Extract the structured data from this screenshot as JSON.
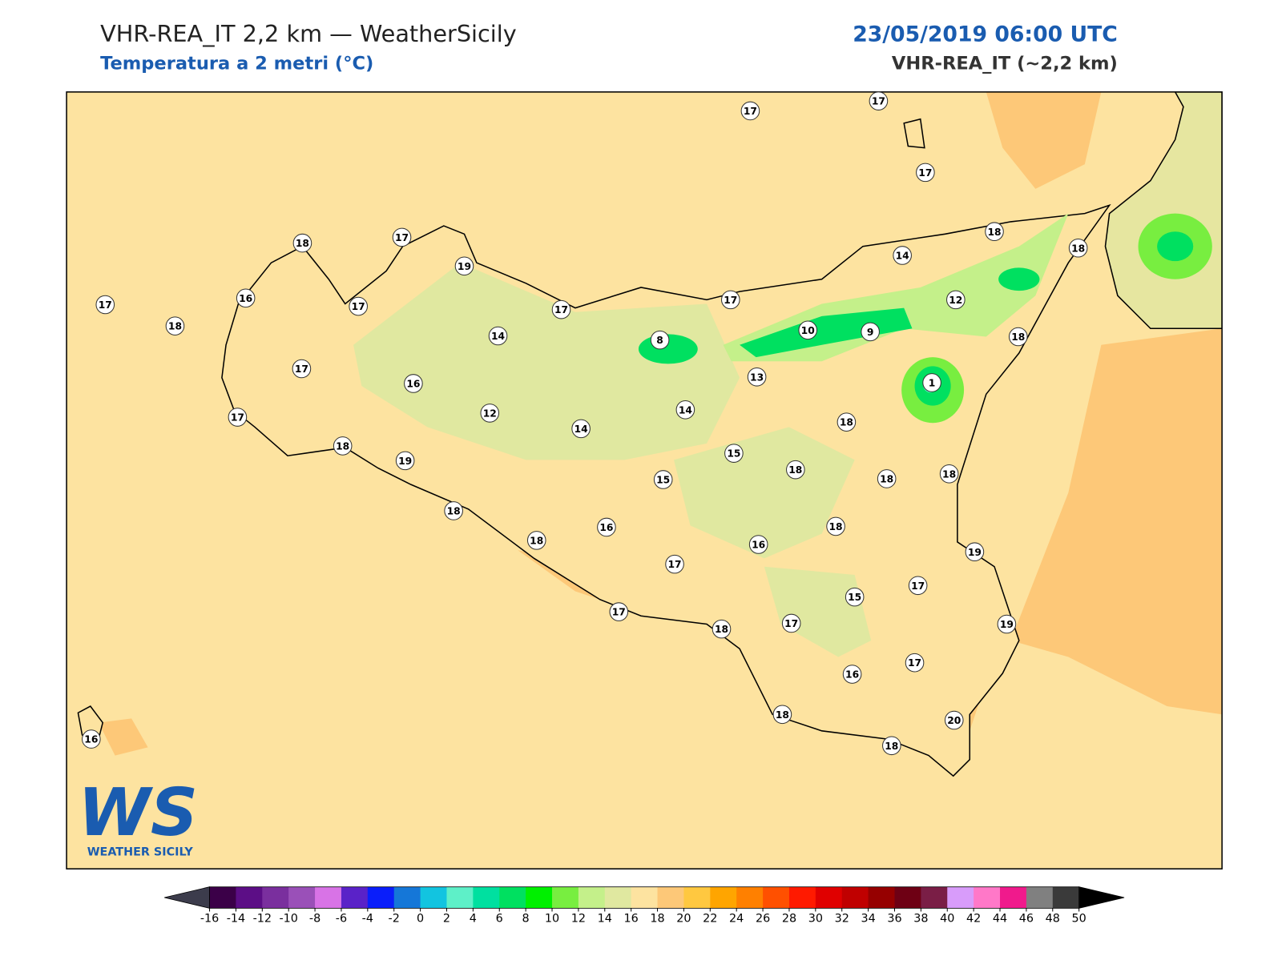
{
  "header": {
    "title": "VHR-REA_IT 2,2 km — WeatherSicily",
    "subtitle": "Temperatura a 2 metri (°C)",
    "datetime": "23/05/2019 06:00 UTC",
    "model": "VHR-REA_IT (~2,2 km)"
  },
  "map": {
    "stations": [
      17,
      17,
      17,
      18,
      18,
      18,
      17,
      19,
      17,
      16,
      17,
      18,
      17,
      17,
      14,
      12,
      14,
      8,
      10,
      9,
      18,
      17,
      16,
      13,
      1,
      17,
      12,
      14,
      14,
      18,
      18,
      19,
      15,
      15,
      18,
      18,
      18,
      18,
      16,
      18,
      18,
      16,
      19,
      17,
      17,
      15,
      17,
      18,
      17,
      19,
      17,
      16,
      18,
      20,
      18,
      16
    ]
  },
  "colorbar": {
    "ticks": [
      -16,
      -14,
      -12,
      -10,
      -8,
      -6,
      -4,
      -2,
      0,
      2,
      4,
      6,
      8,
      10,
      12,
      14,
      16,
      18,
      20,
      22,
      24,
      26,
      28,
      30,
      32,
      34,
      36,
      38,
      40,
      42,
      44,
      46,
      48,
      50
    ],
    "colors": [
      "#3b0048",
      "#5c0e86",
      "#7a2f9e",
      "#9a50b8",
      "#d873e6",
      "#5a22c8",
      "#0a1efa",
      "#1577d8",
      "#12c4e0",
      "#5ef0c8",
      "#00e0a0",
      "#00e060",
      "#00f000",
      "#78ee40",
      "#c4f08a",
      "#e0e8a0",
      "#fde3a0",
      "#fdc878",
      "#ffc840",
      "#ffa500",
      "#ff8000",
      "#ff5000",
      "#ff1a00",
      "#e00000",
      "#c00000",
      "#960000",
      "#6e0014",
      "#7a1e46",
      "#d89cfa",
      "#ff78c8",
      "#f01a8c",
      "#808080",
      "#3a3a3a"
    ],
    "under": "#3c3c4c",
    "over": "#000000"
  },
  "logo": {
    "mark": "WS",
    "text": "WEATHER SICILY"
  }
}
